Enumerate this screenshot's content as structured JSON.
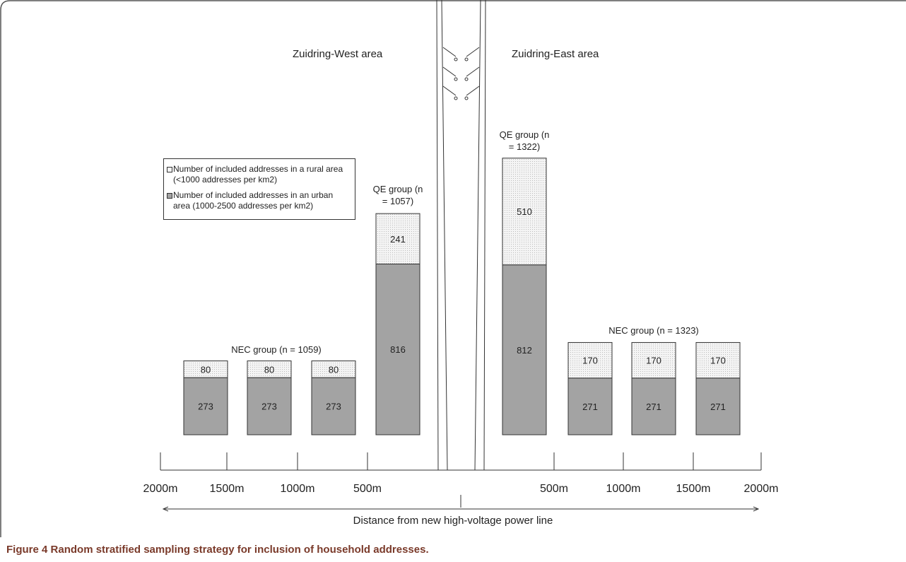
{
  "areas": [
    "Zuidring-West area",
    "Zuidring-East area"
  ],
  "legend": [
    "Number of included addresses in a rural area (<1000 addresses per km2)",
    "Number of included addresses in an urban area (1000-2500 addresses per km2)"
  ],
  "groups": [
    "NEC group (n = 1059)",
    "QE group (n = 1057)",
    "QE group (n = 1322)",
    "NEC group (n = 1323)"
  ],
  "bars": [
    {
      "rural": 80,
      "urban": 273
    },
    {
      "rural": 80,
      "urban": 273
    },
    {
      "rural": 80,
      "urban": 273
    },
    {
      "rural": 241,
      "urban": 816
    },
    {
      "rural": 510,
      "urban": 812
    },
    {
      "rural": 170,
      "urban": 271
    },
    {
      "rural": 170,
      "urban": 271
    },
    {
      "rural": 170,
      "urban": 271
    }
  ],
  "distance_labels": [
    "2000m",
    "1500m",
    "1000m",
    "500m",
    "500m",
    "1000m",
    "1500m",
    "2000m"
  ],
  "axis_title": "Distance from new high-voltage power line",
  "caption": {
    "label": "Figure 4",
    "text": "Random stratified sampling strategy for inclusion of household addresses."
  }
}
